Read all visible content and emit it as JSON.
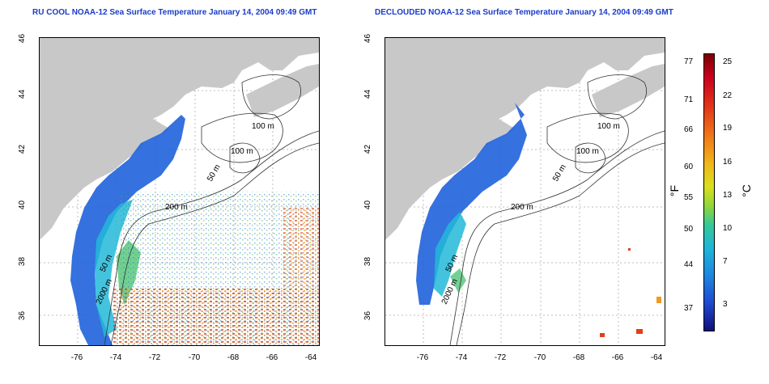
{
  "titles": {
    "left": "RU COOL NOAA-12 Sea Surface Temperature January 14, 2004 09:49 GMT",
    "right": "DECLOUDED NOAA-12 Sea Surface Temperature January 14, 2004 09:49 GMT"
  },
  "map": {
    "x_ticks": [
      "-76",
      "-74",
      "-72",
      "-70",
      "-68",
      "-66",
      "-64"
    ],
    "y_ticks": [
      "46",
      "44",
      "42",
      "40",
      "38",
      "36"
    ],
    "contour_labels": [
      "100 m",
      "100 m",
      "50 m",
      "200 m",
      "50 m",
      "2000 m"
    ],
    "contour_labels_right": [
      "100 m",
      "100 m",
      "50 m",
      "200 m",
      "50 m",
      "2000 m"
    ]
  },
  "colorbar": {
    "fahrenheit_ticks": [
      "77",
      "71",
      "66",
      "60",
      "55",
      "50",
      "44",
      "37"
    ],
    "celsius_ticks": [
      "25",
      "22",
      "19",
      "16",
      "13",
      "10",
      "7",
      "3"
    ],
    "fahrenheit_label": "°F",
    "celsius_label": "°C"
  },
  "colors": {
    "land": "#c8c8c8",
    "title": "#1a3cc8",
    "cold": "#1f4ad0",
    "warm": "#e0301a"
  }
}
